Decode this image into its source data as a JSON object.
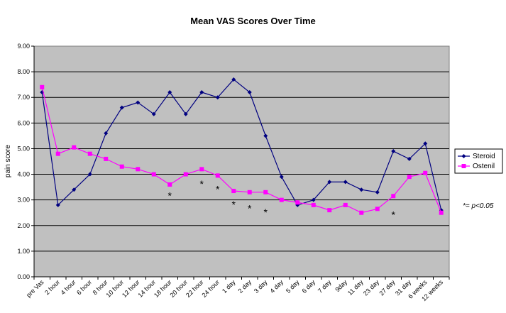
{
  "chart_data": {
    "type": "line",
    "title": "Mean VAS  Scores Over Time",
    "ylabel": "pain score",
    "xlabel": "",
    "ylim": [
      0,
      9
    ],
    "yticks": [
      "0.00",
      "1.00",
      "2.00",
      "3.00",
      "4.00",
      "5.00",
      "6.00",
      "7.00",
      "8.00",
      "9.00"
    ],
    "grid": true,
    "legend_position": "right",
    "categories": [
      "pre Vas",
      "2 hour",
      "4 hour",
      "6 hour",
      "8 hour",
      "10 hour",
      "12 hour",
      "14 hour",
      "18 hour",
      "20 hour",
      "22 hour",
      "24 hour",
      "1 day",
      "2 day",
      "3 day",
      "4 day",
      "5 day",
      "6 day",
      "7 day",
      "9day",
      "11 day",
      "23 day",
      "27 day",
      "31 day",
      "6 weeks",
      "12 weeks"
    ],
    "series": [
      {
        "name": "Steroid",
        "color": "#000080",
        "marker": "diamond",
        "values": [
          7.2,
          2.8,
          3.4,
          4.0,
          5.6,
          6.6,
          6.8,
          6.35,
          7.2,
          6.35,
          7.2,
          7.0,
          7.7,
          7.2,
          5.5,
          3.9,
          2.8,
          3.0,
          3.7,
          3.7,
          3.4,
          3.3,
          4.9,
          4.6,
          5.2,
          2.6
        ]
      },
      {
        "name": "Ostenil",
        "color": "#ff00ff",
        "marker": "square",
        "values": [
          7.4,
          4.8,
          5.05,
          4.8,
          4.6,
          4.3,
          4.2,
          4.0,
          3.6,
          4.0,
          4.2,
          3.95,
          3.35,
          3.3,
          3.3,
          3.0,
          2.9,
          2.8,
          2.6,
          2.8,
          2.5,
          2.65,
          3.15,
          3.9,
          4.05,
          2.5
        ]
      }
    ],
    "significance_marks": [
      {
        "category": "18 hour",
        "y": 3.2
      },
      {
        "category": "22 hour",
        "y": 3.65
      },
      {
        "category": "24 hour",
        "y": 3.45
      },
      {
        "category": "1 day",
        "y": 2.85
      },
      {
        "category": "2 day",
        "y": 2.7
      },
      {
        "category": "3 day",
        "y": 2.55
      },
      {
        "category": "27 day",
        "y": 2.45
      }
    ],
    "significance_mark_symbol": "*",
    "annotation": "*= p<0.05",
    "plot_background": "#c0c0c0"
  }
}
